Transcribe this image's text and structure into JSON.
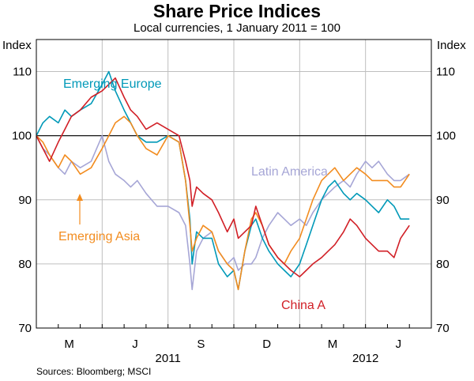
{
  "chart_data": {
    "type": "line",
    "title": "Share Price Indices",
    "subtitle": "Local currencies, 1 January 2011 = 100",
    "ylabel_left": "Index",
    "ylabel_right": "Index",
    "ylim": [
      70,
      115
    ],
    "yticks": [
      70,
      80,
      90,
      100,
      110
    ],
    "xlim": [
      0,
      18
    ],
    "x_unit": "months since 1 Jan 2011",
    "xticks": [
      {
        "x": 1.5,
        "label": "M"
      },
      {
        "x": 4.5,
        "label": "J"
      },
      {
        "x": 7.5,
        "label": "S"
      },
      {
        "x": 10.5,
        "label": "D"
      },
      {
        "x": 13.5,
        "label": "M"
      },
      {
        "x": 16.5,
        "label": "J"
      }
    ],
    "xgrid": [
      3,
      6,
      9,
      12,
      15
    ],
    "year_labels": [
      {
        "x": 6,
        "label": "2011"
      },
      {
        "x": 15,
        "label": "2012"
      }
    ],
    "reference_line": 100,
    "source": "Sources: Bloomberg; MSCI",
    "series": [
      {
        "name": "Latin America",
        "color": "#a6a6d6",
        "label_text": "Latin America",
        "x": [
          0,
          0.3,
          0.6,
          1.0,
          1.3,
          1.6,
          2.0,
          2.5,
          3.0,
          3.3,
          3.6,
          4.0,
          4.3,
          4.6,
          5.0,
          5.5,
          6.0,
          6.5,
          6.8,
          7.0,
          7.1,
          7.3,
          7.6,
          8.0,
          8.3,
          8.7,
          9.0,
          9.2,
          9.5,
          9.8,
          10.0,
          10.3,
          10.6,
          11.0,
          11.3,
          11.6,
          12.0,
          12.3,
          12.6,
          13.0,
          13.3,
          13.6,
          14.0,
          14.3,
          14.6,
          15.0,
          15.3,
          15.6,
          16.0,
          16.3,
          16.6,
          17.0
        ],
        "y": [
          100,
          98,
          97,
          95,
          94,
          96,
          95,
          96,
          100,
          96,
          94,
          93,
          92,
          93,
          91,
          89,
          89,
          88,
          86,
          80,
          76,
          82,
          84,
          85,
          82,
          80,
          81,
          79,
          80,
          80,
          81,
          84,
          86,
          88,
          87,
          86,
          87,
          86,
          88,
          90,
          91,
          92,
          93,
          92,
          94,
          96,
          95,
          96,
          94,
          93,
          93,
          94
        ]
      },
      {
        "name": "Emerging Europe",
        "color": "#0099b8",
        "label_text": "Emerging Europe",
        "x": [
          0,
          0.3,
          0.6,
          1.0,
          1.3,
          1.6,
          2.0,
          2.5,
          3.0,
          3.3,
          3.6,
          4.0,
          4.3,
          4.6,
          5.0,
          5.5,
          6.0,
          6.5,
          6.8,
          7.0,
          7.1,
          7.3,
          7.6,
          8.0,
          8.3,
          8.7,
          9.0,
          9.2,
          9.5,
          9.8,
          10.0,
          10.3,
          10.6,
          11.0,
          11.3,
          11.6,
          12.0,
          12.3,
          12.6,
          13.0,
          13.3,
          13.6,
          14.0,
          14.3,
          14.6,
          15.0,
          15.3,
          15.6,
          16.0,
          16.3,
          16.6,
          17.0
        ],
        "y": [
          100,
          102,
          103,
          102,
          104,
          103,
          104,
          105,
          108,
          110,
          107,
          104,
          102,
          100,
          99,
          99,
          100,
          99,
          93,
          87,
          80,
          85,
          84,
          84,
          80,
          78,
          79,
          76,
          82,
          86,
          87,
          84,
          82,
          80,
          79,
          78,
          80,
          83,
          86,
          90,
          92,
          93,
          91,
          90,
          91,
          90,
          89,
          88,
          90,
          89,
          87,
          87
        ]
      },
      {
        "name": "Emerging Asia",
        "color": "#f28c1f",
        "label_text": "Emerging Asia",
        "x": [
          0,
          0.3,
          0.6,
          1.0,
          1.3,
          1.6,
          2.0,
          2.5,
          3.0,
          3.3,
          3.6,
          4.0,
          4.3,
          4.6,
          5.0,
          5.5,
          6.0,
          6.5,
          6.8,
          7.0,
          7.1,
          7.3,
          7.6,
          8.0,
          8.3,
          8.7,
          9.0,
          9.2,
          9.5,
          9.8,
          10.0,
          10.3,
          10.6,
          11.0,
          11.3,
          11.6,
          12.0,
          12.3,
          12.6,
          13.0,
          13.3,
          13.6,
          14.0,
          14.3,
          14.6,
          15.0,
          15.3,
          15.6,
          16.0,
          16.3,
          16.6,
          17.0
        ],
        "y": [
          100,
          99,
          97,
          95,
          97,
          96,
          94,
          95,
          98,
          100,
          102,
          103,
          102,
          100,
          98,
          97,
          100,
          99,
          93,
          86,
          82,
          84,
          86,
          85,
          82,
          80,
          79,
          76,
          82,
          87,
          88,
          86,
          83,
          81,
          80,
          82,
          84,
          87,
          90,
          93,
          94,
          95,
          93,
          94,
          95,
          94,
          93,
          93,
          93,
          92,
          92,
          94
        ]
      },
      {
        "name": "China A",
        "color": "#d11f26",
        "label_text": "China A",
        "x": [
          0,
          0.3,
          0.6,
          1.0,
          1.3,
          1.6,
          2.0,
          2.5,
          3.0,
          3.3,
          3.6,
          4.0,
          4.3,
          4.6,
          5.0,
          5.5,
          6.0,
          6.5,
          6.8,
          7.0,
          7.1,
          7.3,
          7.6,
          8.0,
          8.3,
          8.7,
          9.0,
          9.2,
          9.5,
          9.8,
          10.0,
          10.3,
          10.6,
          11.0,
          11.3,
          11.6,
          12.0,
          12.3,
          12.6,
          13.0,
          13.3,
          13.6,
          14.0,
          14.3,
          14.6,
          15.0,
          15.3,
          15.6,
          16.0,
          16.3,
          16.6,
          17.0
        ],
        "y": [
          100,
          98,
          96,
          99,
          101,
          103,
          104,
          106,
          107,
          108,
          109,
          106,
          104,
          103,
          101,
          102,
          101,
          100,
          96,
          93,
          89,
          92,
          91,
          90,
          88,
          85,
          87,
          84,
          85,
          86,
          89,
          86,
          83,
          81,
          80,
          79,
          78,
          79,
          80,
          81,
          82,
          83,
          85,
          87,
          86,
          84,
          83,
          82,
          82,
          81,
          84,
          86
        ]
      }
    ],
    "annotations": [
      {
        "text_key": "Emerging Europe",
        "series": 1
      },
      {
        "text_key": "Latin America",
        "series": 0
      },
      {
        "text_key": "Emerging Asia",
        "series": 2
      },
      {
        "text_key": "China A",
        "series": 3
      }
    ]
  }
}
